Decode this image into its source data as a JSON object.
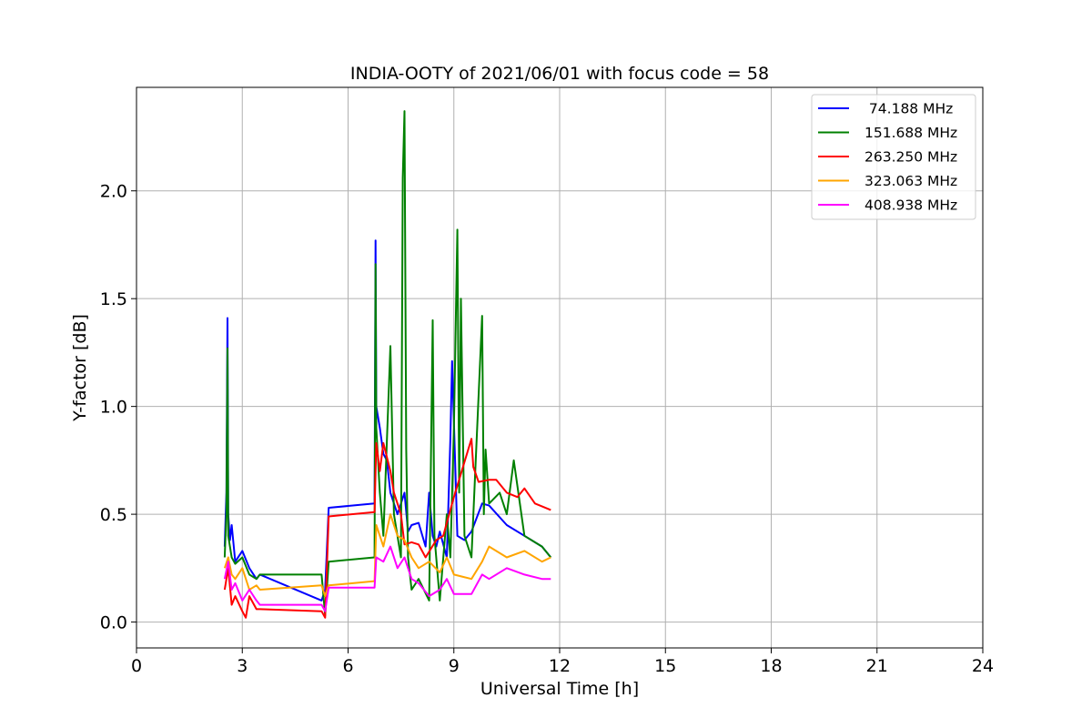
{
  "chart_data": {
    "type": "line",
    "title": "INDIA-OOTY of 2021/06/01 with focus code = 58",
    "xlabel": "Universal Time [h]",
    "ylabel": "Y-factor [dB]",
    "xlim": [
      0,
      24
    ],
    "ylim": [
      -0.12,
      2.48
    ],
    "xticks": [
      0,
      3,
      6,
      9,
      12,
      15,
      18,
      21,
      24
    ],
    "yticks": [
      0.0,
      0.5,
      1.0,
      1.5,
      2.0
    ],
    "xtick_labels": [
      "0",
      "3",
      "6",
      "9",
      "12",
      "15",
      "18",
      "21",
      "24"
    ],
    "ytick_labels": [
      "0.0",
      "0.5",
      "1.0",
      "1.5",
      "2.0"
    ],
    "grid": true,
    "legend_position": "top-right",
    "series": [
      {
        "name": " 74.188 MHz",
        "color": "#0000ff",
        "x": [
          2.5,
          2.55,
          2.58,
          2.6,
          2.65,
          2.7,
          2.8,
          3.0,
          3.2,
          3.4,
          3.5,
          5.25,
          5.35,
          5.45,
          6.75,
          6.78,
          6.8,
          6.9,
          7.0,
          7.1,
          7.2,
          7.4,
          7.6,
          7.7,
          7.8,
          8.0,
          8.2,
          8.3,
          8.4,
          8.5,
          8.6,
          8.8,
          8.9,
          8.95,
          9.1,
          9.3,
          9.5,
          9.8,
          10.0,
          10.5,
          11.0,
          11.5,
          11.75
        ],
        "y": [
          0.35,
          0.6,
          1.41,
          0.5,
          0.38,
          0.45,
          0.28,
          0.33,
          0.25,
          0.2,
          0.22,
          0.1,
          0.15,
          0.53,
          0.55,
          1.77,
          1.0,
          0.9,
          0.78,
          0.75,
          0.6,
          0.5,
          0.6,
          0.42,
          0.45,
          0.46,
          0.35,
          0.6,
          0.4,
          0.35,
          0.42,
          0.3,
          0.85,
          1.21,
          0.4,
          0.38,
          0.42,
          0.55,
          0.54,
          0.45,
          0.4,
          0.35,
          0.3
        ]
      },
      {
        "name": "151.688 MHz",
        "color": "#008000",
        "x": [
          2.5,
          2.55,
          2.58,
          2.6,
          2.7,
          2.8,
          3.0,
          3.2,
          3.4,
          3.5,
          5.25,
          5.35,
          5.45,
          6.75,
          6.78,
          6.8,
          6.9,
          7.0,
          7.2,
          7.3,
          7.5,
          7.55,
          7.6,
          7.65,
          7.7,
          7.8,
          8.0,
          8.3,
          8.4,
          8.45,
          8.6,
          8.8,
          8.9,
          9.0,
          9.1,
          9.15,
          9.2,
          9.3,
          9.5,
          9.8,
          9.85,
          9.9,
          10.0,
          10.3,
          10.5,
          10.7,
          11.0,
          11.5,
          11.75
        ],
        "y": [
          0.3,
          0.5,
          1.27,
          0.4,
          0.3,
          0.27,
          0.3,
          0.22,
          0.2,
          0.22,
          0.22,
          0.03,
          0.28,
          0.3,
          1.66,
          0.9,
          0.6,
          0.4,
          1.28,
          0.5,
          0.3,
          2.06,
          2.37,
          0.8,
          0.3,
          0.15,
          0.2,
          0.1,
          1.4,
          0.4,
          0.1,
          0.5,
          0.3,
          0.9,
          1.82,
          0.6,
          1.5,
          0.4,
          0.3,
          1.42,
          0.5,
          0.8,
          0.55,
          0.6,
          0.5,
          0.75,
          0.4,
          0.35,
          0.3
        ]
      },
      {
        "name": "263.250 MHz",
        "color": "#ff0000",
        "x": [
          2.5,
          2.6,
          2.7,
          2.8,
          3.0,
          3.1,
          3.2,
          3.4,
          3.5,
          5.25,
          5.35,
          5.45,
          6.75,
          6.8,
          6.9,
          7.0,
          7.2,
          7.3,
          7.5,
          7.6,
          7.8,
          8.0,
          8.2,
          8.5,
          8.7,
          9.0,
          9.5,
          9.55,
          9.7,
          10.0,
          10.2,
          10.5,
          10.8,
          11.0,
          11.3,
          11.75
        ],
        "y": [
          0.15,
          0.25,
          0.08,
          0.12,
          0.05,
          0.02,
          0.12,
          0.06,
          0.06,
          0.05,
          0.02,
          0.49,
          0.51,
          0.83,
          0.7,
          0.83,
          0.7,
          0.6,
          0.5,
          0.36,
          0.37,
          0.36,
          0.3,
          0.38,
          0.4,
          0.58,
          0.85,
          0.72,
          0.65,
          0.66,
          0.66,
          0.6,
          0.58,
          0.62,
          0.55,
          0.52
        ]
      },
      {
        "name": "323.063 MHz",
        "color": "#ffa500",
        "x": [
          2.5,
          2.6,
          2.7,
          2.8,
          3.0,
          3.2,
          3.4,
          3.5,
          5.25,
          5.35,
          5.45,
          6.75,
          6.8,
          7.0,
          7.2,
          7.4,
          7.6,
          7.8,
          8.0,
          8.3,
          8.6,
          8.8,
          9.0,
          9.5,
          9.8,
          10.0,
          10.5,
          11.0,
          11.5,
          11.75
        ],
        "y": [
          0.25,
          0.3,
          0.22,
          0.2,
          0.25,
          0.15,
          0.17,
          0.15,
          0.17,
          0.12,
          0.17,
          0.19,
          0.45,
          0.35,
          0.5,
          0.4,
          0.38,
          0.3,
          0.25,
          0.28,
          0.23,
          0.3,
          0.22,
          0.2,
          0.28,
          0.35,
          0.3,
          0.33,
          0.28,
          0.3
        ]
      },
      {
        "name": "408.938 MHz",
        "color": "#ff00ff",
        "x": [
          2.5,
          2.6,
          2.7,
          2.8,
          3.0,
          3.2,
          3.4,
          3.5,
          5.25,
          5.35,
          5.45,
          6.75,
          6.8,
          7.0,
          7.2,
          7.4,
          7.6,
          7.8,
          8.0,
          8.3,
          8.6,
          8.8,
          9.0,
          9.5,
          9.8,
          10.0,
          10.5,
          11.0,
          11.5,
          11.75
        ],
        "y": [
          0.2,
          0.28,
          0.15,
          0.18,
          0.1,
          0.15,
          0.1,
          0.08,
          0.08,
          0.05,
          0.16,
          0.16,
          0.3,
          0.28,
          0.35,
          0.25,
          0.3,
          0.2,
          0.18,
          0.12,
          0.15,
          0.2,
          0.13,
          0.13,
          0.22,
          0.2,
          0.25,
          0.22,
          0.2,
          0.2
        ]
      }
    ]
  }
}
